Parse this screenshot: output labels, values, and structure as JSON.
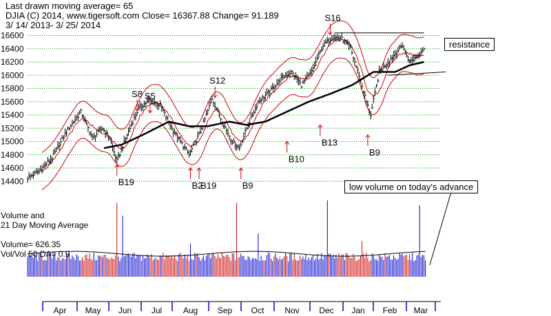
{
  "header": {
    "line1": "Last drawn moving average= 65",
    "line2": "DJIA   (C) 2014, www.tigersoft.com     Close=  16367.88  Change= 91.189",
    "line3": "3/ 14/ 2013- 3/ 25/ 2014"
  },
  "volume_panel": {
    "title1": "Volume and",
    "title2": "21 Day Moving Average",
    "volume_text": "Volume= 626.35",
    "ratio_text": "Vol/Vol 50 DA= 0.9"
  },
  "colors": {
    "price_bar": "#000000",
    "bands": "#cc0000",
    "moving_average": "#000000",
    "grid": "#009900",
    "volume_up": "#0000cc",
    "volume_down": "#cc0000",
    "month_ticks": "#0000cc"
  },
  "chart_data": [
    {
      "type": "ohlc-bars",
      "y_ticks": [
        14400,
        14600,
        14800,
        15000,
        15200,
        15400,
        15600,
        15800,
        16000,
        16200,
        16400,
        16600
      ],
      "ylim": [
        14330,
        16720
      ],
      "grid": true,
      "x_months": [
        "Apr",
        "May",
        "Jun",
        "Jul",
        "Aug",
        "Sep",
        "Oct",
        "Nov",
        "Dec",
        "Jan",
        "Feb",
        "Mar"
      ],
      "close_anchors": [
        {
          "t": 0,
          "v": 14450
        },
        {
          "t": 8,
          "v": 14550
        },
        {
          "t": 17,
          "v": 14750
        },
        {
          "t": 27,
          "v": 15150
        },
        {
          "t": 37,
          "v": 15450
        },
        {
          "t": 45,
          "v": 15050
        },
        {
          "t": 52,
          "v": 15200
        },
        {
          "t": 57,
          "v": 15050
        },
        {
          "t": 62,
          "v": 14700
        },
        {
          "t": 69,
          "v": 15100
        },
        {
          "t": 77,
          "v": 15500
        },
        {
          "t": 84,
          "v": 15620
        },
        {
          "t": 92,
          "v": 15550
        },
        {
          "t": 100,
          "v": 15200
        },
        {
          "t": 106,
          "v": 15000
        },
        {
          "t": 112,
          "v": 14800
        },
        {
          "t": 120,
          "v": 15150
        },
        {
          "t": 128,
          "v": 15650
        },
        {
          "t": 135,
          "v": 15300
        },
        {
          "t": 142,
          "v": 15000
        },
        {
          "t": 147,
          "v": 14900
        },
        {
          "t": 152,
          "v": 15200
        },
        {
          "t": 160,
          "v": 15600
        },
        {
          "t": 168,
          "v": 15750
        },
        {
          "t": 176,
          "v": 15950
        },
        {
          "t": 183,
          "v": 16050
        },
        {
          "t": 190,
          "v": 15850
        },
        {
          "t": 197,
          "v": 16050
        },
        {
          "t": 205,
          "v": 16450
        },
        {
          "t": 212,
          "v": 16580
        },
        {
          "t": 218,
          "v": 16550
        },
        {
          "t": 224,
          "v": 16400
        },
        {
          "t": 230,
          "v": 16000
        },
        {
          "t": 235,
          "v": 15600
        },
        {
          "t": 238,
          "v": 15400
        },
        {
          "t": 244,
          "v": 16050
        },
        {
          "t": 252,
          "v": 16250
        },
        {
          "t": 260,
          "v": 16450
        },
        {
          "t": 265,
          "v": 16200
        },
        {
          "t": 270,
          "v": 16300
        },
        {
          "t": 275,
          "v": 16400
        }
      ],
      "moving_average_anchors": [
        {
          "t": 53,
          "v": 14900
        },
        {
          "t": 65,
          "v": 14950
        },
        {
          "t": 80,
          "v": 15100
        },
        {
          "t": 98,
          "v": 15300
        },
        {
          "t": 112,
          "v": 15230
        },
        {
          "t": 125,
          "v": 15230
        },
        {
          "t": 140,
          "v": 15300
        },
        {
          "t": 152,
          "v": 15250
        },
        {
          "t": 165,
          "v": 15300
        },
        {
          "t": 180,
          "v": 15450
        },
        {
          "t": 195,
          "v": 15600
        },
        {
          "t": 210,
          "v": 15720
        },
        {
          "t": 225,
          "v": 15850
        },
        {
          "t": 240,
          "v": 16050
        },
        {
          "t": 255,
          "v": 16050
        },
        {
          "t": 265,
          "v": 16150
        },
        {
          "t": 275,
          "v": 16200
        }
      ],
      "resistance_line": {
        "start": {
          "t": 213,
          "v": 16640
        },
        "end": {
          "t": 275,
          "v": 16640
        }
      },
      "support_line": {
        "start": {
          "t": 250,
          "v": 16000
        },
        "end": {
          "t": 290,
          "v": 16050
        }
      },
      "signals": [
        {
          "label": "S16",
          "t": 210,
          "v": 16800,
          "type": "sell"
        },
        {
          "label": "S8",
          "t": 76,
          "v": 15650,
          "type": "sell"
        },
        {
          "label": "S5",
          "t": 85,
          "v": 15620,
          "type": "sell"
        },
        {
          "label": "S12",
          "t": 130,
          "v": 15850,
          "type": "sell"
        },
        {
          "label": "B19",
          "t": 62,
          "v": 14650,
          "type": "buy"
        },
        {
          "label": "B2",
          "t": 113,
          "v": 14600,
          "type": "buy"
        },
        {
          "label": "B19",
          "t": 119,
          "v": 14600,
          "type": "buy"
        },
        {
          "label": "B9",
          "t": 148,
          "v": 14600,
          "type": "buy"
        },
        {
          "label": "B10",
          "t": 180,
          "v": 15000,
          "type": "buy"
        },
        {
          "label": "B13",
          "t": 203,
          "v": 15250,
          "type": "buy"
        },
        {
          "label": "B9",
          "t": 236,
          "v": 15100,
          "type": "buy"
        }
      ],
      "annotations": [
        {
          "label": "resistance",
          "t": 292,
          "v": 16590
        },
        {
          "label": "low volume on today's advance",
          "t": 218,
          "v": 14400
        }
      ]
    },
    {
      "type": "bar",
      "title": "Volume and 21 Day Moving Average",
      "spikes": [
        {
          "t": 62,
          "v": 2.9
        },
        {
          "t": 66,
          "v": 2.4
        },
        {
          "t": 113,
          "v": 1.3
        },
        {
          "t": 145,
          "v": 2.9
        },
        {
          "t": 160,
          "v": 1.7
        },
        {
          "t": 208,
          "v": 3.0
        },
        {
          "t": 232,
          "v": 1.4
        },
        {
          "t": 272,
          "v": 2.8
        }
      ],
      "baseline_ratio": 0.95
    }
  ]
}
